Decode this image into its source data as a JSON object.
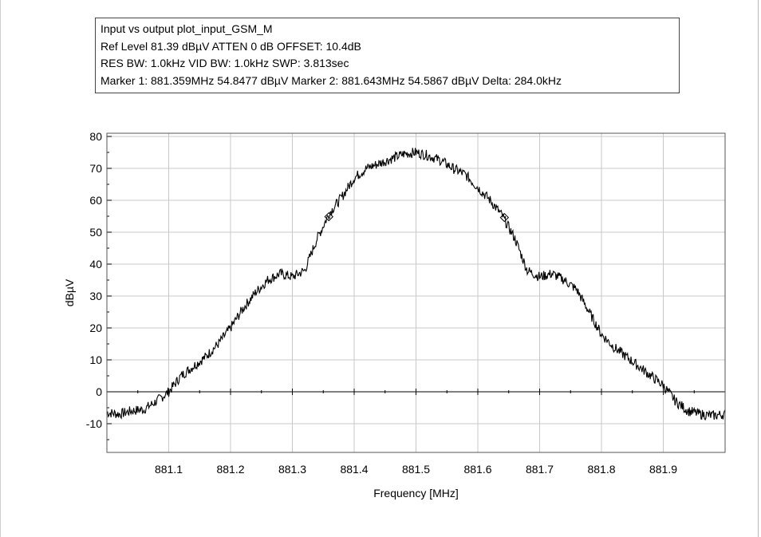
{
  "info_box": {
    "line1": "Input vs output plot_input_GSM_M",
    "line2": "Ref Level 81.39 dBµV    ATTEN 0 dB    OFFSET: 10.4dB",
    "line3": "RES BW: 1.0kHz  VID BW: 1.0kHz  SWP: 3.813sec",
    "line4": "Marker 1: 881.359MHz  54.8477 dBµV    Marker 2: 881.643MHz  54.5867 dBµV Delta: 284.0kHz"
  },
  "chart_data": {
    "type": "line",
    "title": "",
    "xlabel": "Frequency [MHz]",
    "ylabel": "dBµV",
    "xlim": [
      881.0,
      882.0
    ],
    "ylim": [
      -19,
      81
    ],
    "x_ticks": [
      "881.1",
      "881.2",
      "881.3",
      "881.4",
      "881.5",
      "881.6",
      "881.7",
      "881.8",
      "881.9"
    ],
    "y_ticks": [
      "80",
      "70",
      "60",
      "50",
      "40",
      "30",
      "20",
      "10",
      "0",
      "-10"
    ],
    "grid": true,
    "line_color": "#000000",
    "markers": [
      {
        "name": "Marker 1",
        "x": 881.359,
        "y": 54.8477
      },
      {
        "name": "Marker 2",
        "x": 881.643,
        "y": 54.5867
      }
    ],
    "series": [
      {
        "x": [
          881.0,
          881.02,
          881.04,
          881.06,
          881.08,
          881.1,
          881.12,
          881.14,
          881.16,
          881.18,
          881.2,
          881.22,
          881.24,
          881.26,
          881.28,
          881.3,
          881.32,
          881.34,
          881.36,
          881.38,
          881.4,
          881.42,
          881.44,
          881.46,
          881.48,
          881.5,
          881.52,
          881.54,
          881.56,
          881.58,
          881.6,
          881.62,
          881.64,
          881.66,
          881.68,
          881.7,
          881.72,
          881.74,
          881.76,
          881.78,
          881.8,
          881.82,
          881.84,
          881.86,
          881.88,
          881.9,
          881.92,
          881.94,
          881.96,
          881.98,
          882.0
        ],
        "values": [
          -6.5,
          -7,
          -6,
          -5.5,
          -3,
          0,
          5,
          8,
          11,
          15,
          20,
          26,
          31,
          35,
          37,
          36,
          38,
          48,
          56,
          61,
          67,
          70,
          71.5,
          73,
          74.5,
          75,
          74,
          72.5,
          70,
          68,
          64,
          60,
          55,
          48,
          38,
          36,
          37,
          35,
          32,
          25,
          18,
          14,
          11,
          8,
          5,
          2,
          -3,
          -6,
          -7,
          -7.5,
          -7
        ]
      }
    ]
  }
}
